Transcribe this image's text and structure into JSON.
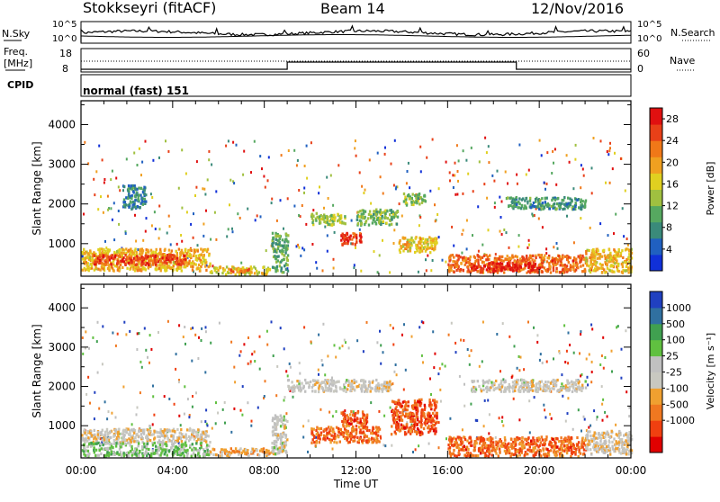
{
  "header": {
    "title": "Stokkseyri (fitACF)",
    "beam": "Beam 14",
    "date": "12/Nov/2016"
  },
  "strips": {
    "nsky_label": "N.Sky",
    "nsearch_label": "N.Search",
    "nsky_ticks": [
      "10^5",
      "10^0"
    ],
    "nsearch_ticks": [
      "10^5",
      "10^0"
    ],
    "freq_label_1": "Freq.",
    "freq_label_2": "[MHz]",
    "freq_ticks": [
      "18",
      "8"
    ],
    "nave_label": "Nave",
    "nave_ticks": [
      "60",
      "0"
    ],
    "cpid_label": "CPID",
    "cpid_value": "normal (fast) 151"
  },
  "colors": {
    "power": [
      "#1030d8",
      "#2060c0",
      "#3a8a7a",
      "#56a860",
      "#a0c040",
      "#e0d020",
      "#f0a020",
      "#f07818",
      "#e84018",
      "#e01010"
    ],
    "velocity": [
      "#e00000",
      "#f04010",
      "#f07820",
      "#f0a030",
      "#c8c8c0",
      "#c0c0c0",
      "#60c040",
      "#40a050",
      "#3070a0",
      "#2040c0"
    ]
  },
  "chart_data": [
    {
      "type": "heatmap",
      "name": "power",
      "xlabel": "",
      "ylabel": "Slant Range [km]",
      "x_ticks": [
        "00:00",
        "04:00",
        "08:00",
        "12:00",
        "16:00",
        "20:00",
        "00:00"
      ],
      "xlim_hours": [
        0,
        24
      ],
      "y_ticks": [
        1000,
        2000,
        3000,
        4000
      ],
      "ylim": [
        180,
        4600
      ],
      "colorbar_label": "Power [dB]",
      "colorbar_ticks": [
        4,
        8,
        12,
        16,
        20,
        24,
        28
      ],
      "colorbar_range": [
        0,
        30
      ],
      "patches": [
        {
          "t0": 0.0,
          "t1": 5.6,
          "r0": 350,
          "r1": 900,
          "level": 0.62
        },
        {
          "t0": 0.5,
          "t1": 4.5,
          "r0": 500,
          "r1": 750,
          "level": 0.85
        },
        {
          "t0": 5.6,
          "t1": 8.2,
          "r0": 250,
          "r1": 450,
          "level": 0.55
        },
        {
          "t0": 6.5,
          "t1": 7.5,
          "r0": 300,
          "r1": 400,
          "level": 0.75
        },
        {
          "t0": 8.3,
          "t1": 9.0,
          "r0": 300,
          "r1": 1300,
          "level": 0.35
        },
        {
          "t0": 10.0,
          "t1": 11.5,
          "r0": 1500,
          "r1": 1800,
          "level": 0.45
        },
        {
          "t0": 11.3,
          "t1": 12.2,
          "r0": 1000,
          "r1": 1300,
          "level": 0.88
        },
        {
          "t0": 12.0,
          "t1": 13.8,
          "r0": 1500,
          "r1": 1900,
          "level": 0.4
        },
        {
          "t0": 13.8,
          "t1": 15.5,
          "r0": 800,
          "r1": 1200,
          "level": 0.6
        },
        {
          "t0": 14.0,
          "t1": 15.0,
          "r0": 2000,
          "r1": 2300,
          "level": 0.4
        },
        {
          "t0": 16.0,
          "t1": 22.0,
          "r0": 300,
          "r1": 750,
          "level": 0.78
        },
        {
          "t0": 17.0,
          "t1": 20.0,
          "r0": 350,
          "r1": 550,
          "level": 0.95
        },
        {
          "t0": 22.0,
          "t1": 24.0,
          "r0": 300,
          "r1": 900,
          "level": 0.6
        },
        {
          "t0": 18.5,
          "t1": 22.0,
          "r0": 1900,
          "r1": 2200,
          "level": 0.3
        },
        {
          "t0": 1.8,
          "t1": 2.8,
          "r0": 1900,
          "r1": 2500,
          "level": 0.25
        }
      ]
    },
    {
      "type": "heatmap",
      "name": "velocity",
      "xlabel": "Time UT",
      "ylabel": "Slant Range [km]",
      "x_ticks": [
        "00:00",
        "04:00",
        "08:00",
        "12:00",
        "16:00",
        "20:00",
        "00:00"
      ],
      "xlim_hours": [
        0,
        24
      ],
      "y_ticks": [
        1000,
        2000,
        3000,
        4000
      ],
      "ylim": [
        180,
        4600
      ],
      "colorbar_label": "Velocity [m s⁻¹]",
      "colorbar_ticks": [
        1000,
        500,
        100,
        25,
        -25,
        -100,
        -500,
        -1000
      ],
      "patches": [
        {
          "t0": 0.0,
          "t1": 5.6,
          "r0": 600,
          "r1": 950,
          "level": 0.45
        },
        {
          "t0": 0.0,
          "t1": 5.6,
          "r0": 250,
          "r1": 600,
          "level": 0.62
        },
        {
          "t0": 5.6,
          "t1": 8.2,
          "r0": 250,
          "r1": 450,
          "level": 0.35
        },
        {
          "t0": 8.3,
          "t1": 9.0,
          "r0": 300,
          "r1": 1300,
          "level": 0.5
        },
        {
          "t0": 9.0,
          "t1": 13.5,
          "r0": 1900,
          "r1": 2200,
          "level": 0.48
        },
        {
          "t0": 10.0,
          "t1": 13.0,
          "r0": 600,
          "r1": 1000,
          "level": 0.22
        },
        {
          "t0": 11.3,
          "t1": 12.5,
          "r0": 1000,
          "r1": 1400,
          "level": 0.2
        },
        {
          "t0": 13.5,
          "t1": 15.5,
          "r0": 800,
          "r1": 1700,
          "level": 0.18
        },
        {
          "t0": 16.0,
          "t1": 22.0,
          "r0": 250,
          "r1": 750,
          "level": 0.22
        },
        {
          "t0": 17.0,
          "t1": 22.0,
          "r0": 1900,
          "r1": 2200,
          "level": 0.48
        },
        {
          "t0": 22.0,
          "t1": 24.0,
          "r0": 300,
          "r1": 900,
          "level": 0.46
        }
      ]
    }
  ]
}
